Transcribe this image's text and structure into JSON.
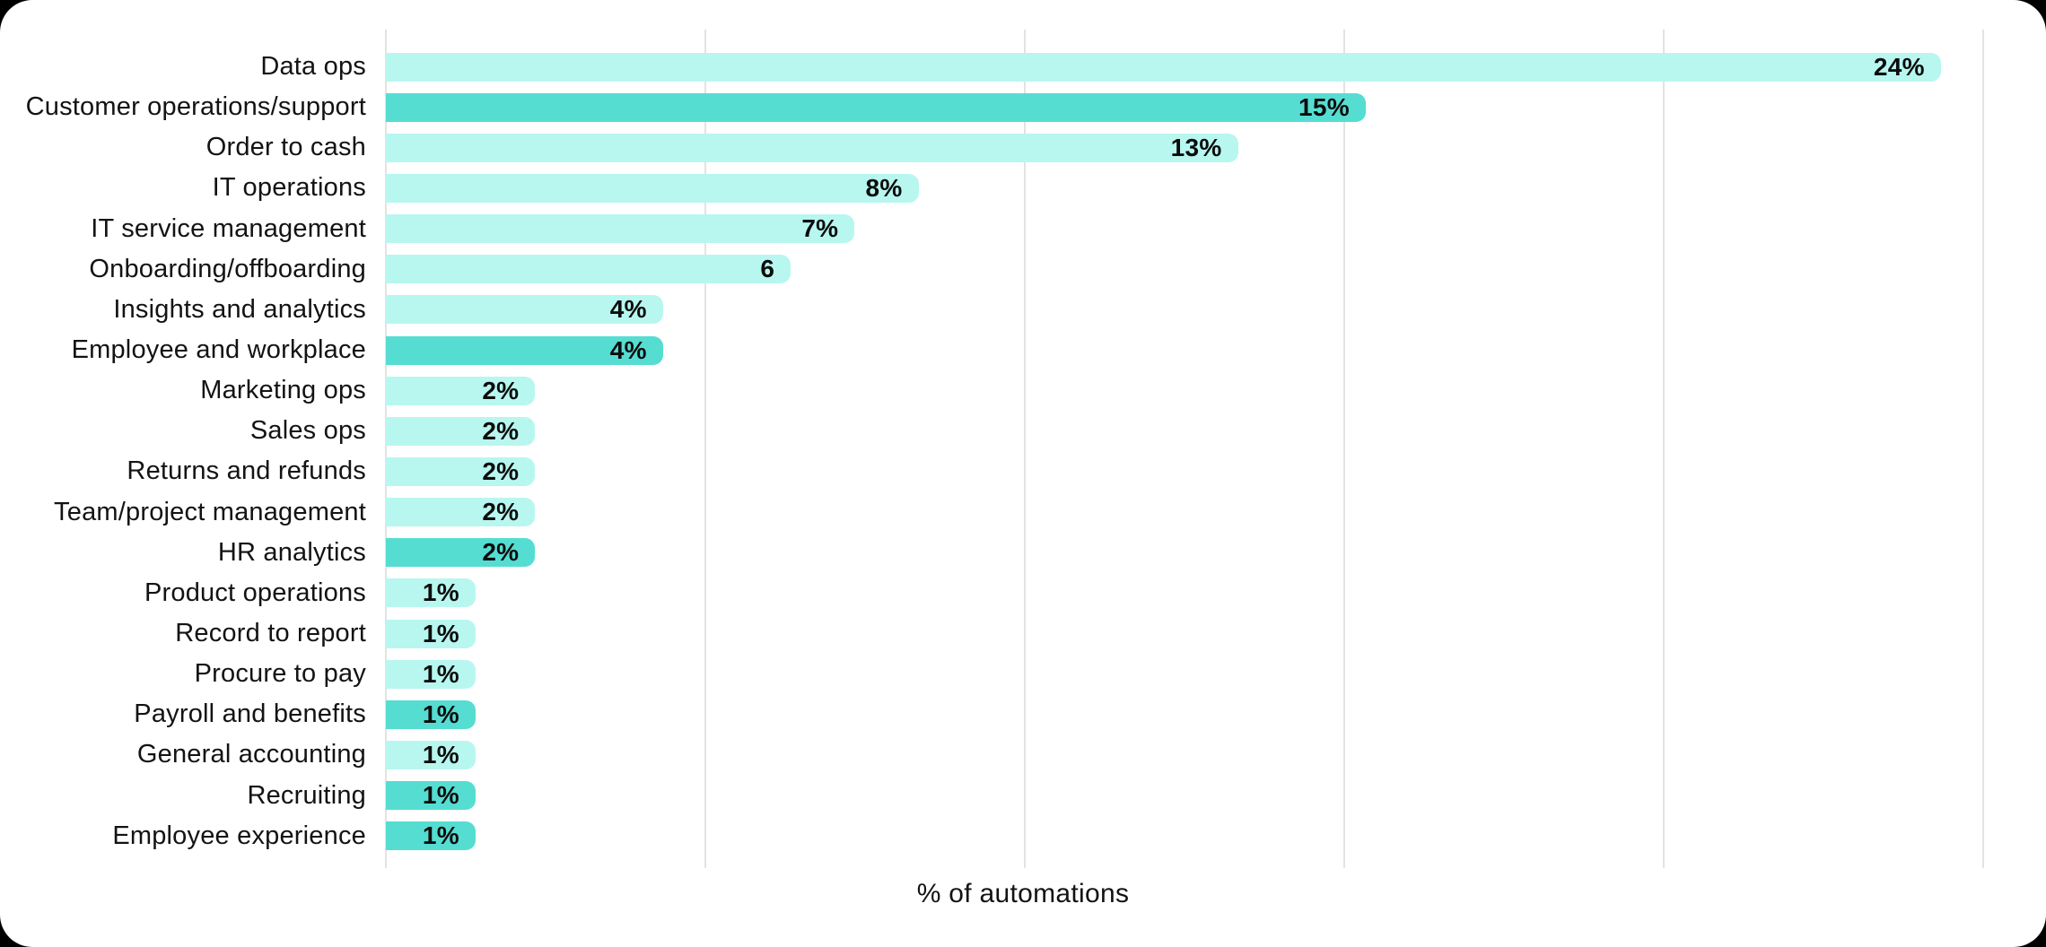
{
  "chart_data": {
    "type": "bar",
    "orientation": "horizontal",
    "title": "",
    "xlabel": "% of automations",
    "ylabel": "",
    "xlim": [
      0,
      25
    ],
    "gridline_values": [
      0,
      5,
      10,
      15,
      20,
      25
    ],
    "grid": "vertical-only",
    "legend_position": "none",
    "colors": {
      "bar_light": "#b8f7f0",
      "bar_dark": "#55ddd2",
      "gridline": "#e3e3e3",
      "text": "#131313",
      "value_text": "#0c0c0c",
      "card_background": "#ffffff",
      "page_background": "#000000"
    },
    "rows": [
      {
        "category": "Data ops",
        "value": 24,
        "label": "24%",
        "emphasis": false
      },
      {
        "category": "Customer operations/support",
        "value": 15,
        "label": "15%",
        "emphasis": true
      },
      {
        "category": "Order to cash",
        "value": 13,
        "label": "13%",
        "emphasis": false
      },
      {
        "category": "IT operations",
        "value": 8,
        "label": "8%",
        "emphasis": false
      },
      {
        "category": "IT service management",
        "value": 7,
        "label": "7%",
        "emphasis": false
      },
      {
        "category": "Onboarding/offboarding",
        "value": 6,
        "label": "6",
        "emphasis": false
      },
      {
        "category": "Insights and analytics",
        "value": 4,
        "label": "4%",
        "emphasis": false
      },
      {
        "category": "Employee and workplace",
        "value": 4,
        "label": "4%",
        "emphasis": true
      },
      {
        "category": "Marketing ops",
        "value": 2,
        "label": "2%",
        "emphasis": false
      },
      {
        "category": "Sales ops",
        "value": 2,
        "label": "2%",
        "emphasis": false
      },
      {
        "category": "Returns and refunds",
        "value": 2,
        "label": "2%",
        "emphasis": false
      },
      {
        "category": "Team/project management",
        "value": 2,
        "label": "2%",
        "emphasis": false
      },
      {
        "category": "HR analytics",
        "value": 2,
        "label": "2%",
        "emphasis": true
      },
      {
        "category": "Product operations",
        "value": 1,
        "label": "1%",
        "emphasis": false
      },
      {
        "category": "Record to report",
        "value": 1,
        "label": "1%",
        "emphasis": false
      },
      {
        "category": "Procure to pay",
        "value": 1,
        "label": "1%",
        "emphasis": false
      },
      {
        "category": "Payroll and benefits",
        "value": 1,
        "label": "1%",
        "emphasis": true
      },
      {
        "category": "General accounting",
        "value": 1,
        "label": "1%",
        "emphasis": false
      },
      {
        "category": "Recruiting",
        "value": 1,
        "label": "1%",
        "emphasis": true
      },
      {
        "category": "Employee experience",
        "value": 1,
        "label": "1%",
        "emphasis": true
      }
    ]
  }
}
